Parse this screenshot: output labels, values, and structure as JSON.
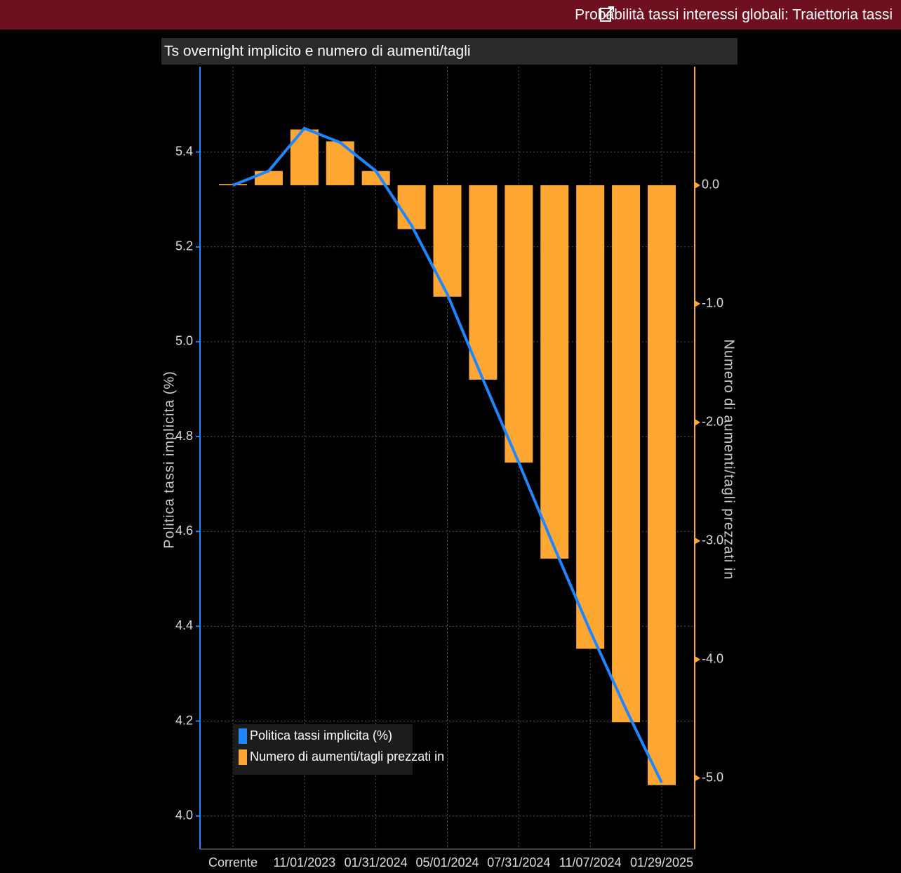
{
  "header": {
    "title": "Probabilità tassi interessi globali: Traiettoria tassi"
  },
  "chart_data": {
    "type": "combo",
    "title": "Ts overnight implicito e numero di aumenti/tagli",
    "y_label": "Politica tassi implicita (%)",
    "y2_label": "Numero di aumenti/tagli prezzati in",
    "categories": [
      "Corrente",
      null,
      "11/01/2023",
      null,
      "01/31/2024",
      null,
      "05/01/2024",
      null,
      "07/31/2024",
      null,
      "11/07/2024",
      null,
      "01/29/2025"
    ],
    "series": [
      {
        "name": "Politica tassi implicita (%)",
        "type": "line",
        "color": "#1f86ff",
        "axis": "y",
        "values": [
          5.33,
          5.36,
          5.45,
          5.42,
          5.36,
          5.245,
          5.1,
          4.92,
          4.745,
          4.565,
          4.39,
          4.225,
          4.07
        ]
      },
      {
        "name": "Numero di aumenti/tagli prezzati in",
        "type": "bar",
        "color": "#ffa733",
        "axis": "y2",
        "values": [
          0.01,
          0.12,
          0.47,
          0.37,
          0.12,
          -0.37,
          -0.94,
          -1.64,
          -2.34,
          -3.15,
          -3.91,
          -4.53,
          -5.06
        ]
      }
    ],
    "ylim": [
      3.93,
      5.58
    ],
    "yticks": [
      {
        "value": 4,
        "label": "4.0"
      },
      4.2,
      4.4,
      4.6,
      4.8,
      {
        "value": 5,
        "label": "5.0"
      },
      5.2,
      5.4
    ],
    "y2lim": [
      -5.6,
      1.0
    ],
    "y2ticks": [
      {
        "value": 0,
        "label": "0.0"
      },
      {
        "value": -1,
        "label": "-1.0"
      },
      {
        "value": -2,
        "label": "-2.0"
      },
      {
        "value": -3,
        "label": "-3.0"
      },
      {
        "value": -4,
        "label": "-4.0"
      },
      {
        "value": -5,
        "label": "-5.0"
      }
    ],
    "grid": true,
    "legend": "bottom-left"
  }
}
